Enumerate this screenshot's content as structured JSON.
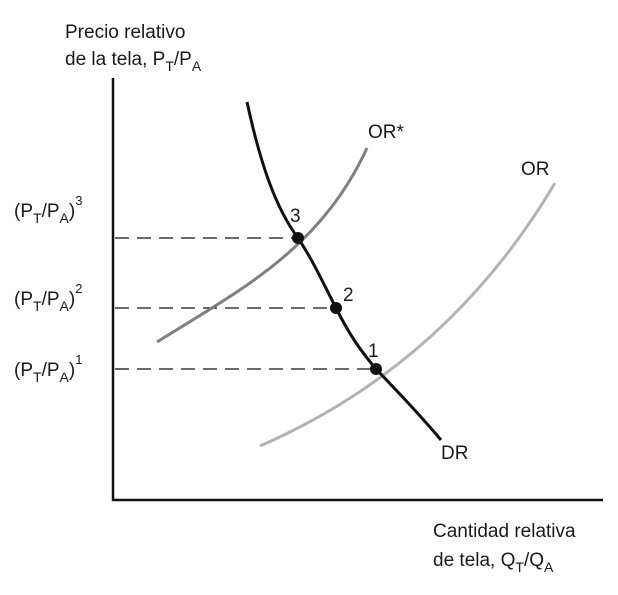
{
  "y_axis_label": {
    "line1": "Precio relativo",
    "line2_prefix": "de la tela, P",
    "sub1": "T",
    "slash": "/P",
    "sub2": "A"
  },
  "x_axis_label": {
    "line1": "Cantidad relativa",
    "line2_prefix": "de tela, Q",
    "sub1": "T",
    "slash": "/Q",
    "sub2": "A"
  },
  "price_levels": [
    {
      "open": "(P",
      "sub1": "T",
      "slash": "/P",
      "sub2": "A",
      "close": ")",
      "exponent": "3"
    },
    {
      "open": "(P",
      "sub1": "T",
      "slash": "/P",
      "sub2": "A",
      "close": ")",
      "exponent": "2"
    },
    {
      "open": "(P",
      "sub1": "T",
      "slash": "/P",
      "sub2": "A",
      "close": ")",
      "exponent": "1"
    }
  ],
  "curves": {
    "relative_demand": {
      "label": "DR",
      "color": "#111111"
    },
    "relative_supply": {
      "label": "OR",
      "color": "#b3b3b3"
    },
    "relative_supply_new": {
      "label": "OR*",
      "color": "#808080"
    }
  },
  "equilibrium_points": [
    {
      "label": "3"
    },
    {
      "label": "2"
    },
    {
      "label": "1"
    }
  ],
  "colors": {
    "axis": "#111111",
    "dashed_line": "#111111",
    "point": "#111111"
  }
}
